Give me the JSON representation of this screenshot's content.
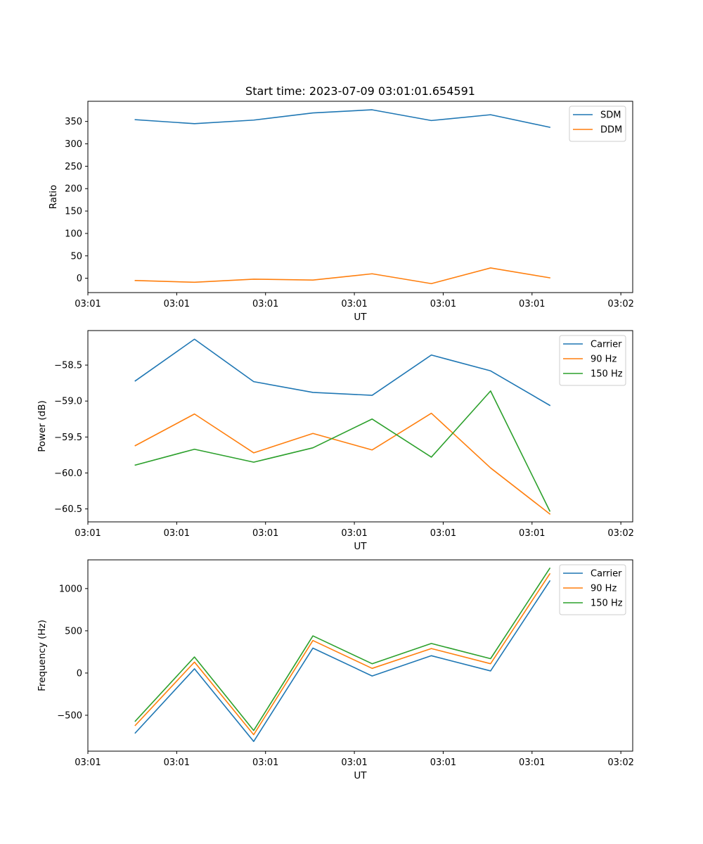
{
  "figure": {
    "title": "Start time: 2023-07-09 03:01:01.654591"
  },
  "chart_data": [
    {
      "type": "line",
      "title": "Start time: 2023-07-09 03:01:01.654591",
      "xlabel": "UT",
      "ylabel": "Ratio",
      "x": [
        1,
        2,
        3,
        4,
        5,
        6,
        7,
        8
      ],
      "xlim": [
        0.2,
        9.4
      ],
      "x_ticks": [
        0.2,
        1.7,
        3.2,
        4.7,
        6.2,
        7.7,
        9.2
      ],
      "x_tick_labels": [
        "03:01",
        "03:01",
        "03:01",
        "03:01",
        "03:01",
        "03:01",
        "03:02"
      ],
      "ylim": [
        -32,
        395
      ],
      "y_ticks": [
        0,
        50,
        100,
        150,
        200,
        250,
        300,
        350
      ],
      "y_tick_labels": [
        "0",
        "50",
        "100",
        "150",
        "200",
        "250",
        "300",
        "350"
      ],
      "legend_position": "top-right",
      "series": [
        {
          "name": "SDM",
          "color": "#1f77b4",
          "values": [
            354,
            345,
            353,
            369,
            376,
            352,
            365,
            337
          ]
        },
        {
          "name": "DDM",
          "color": "#ff7f0e",
          "values": [
            -5,
            -9,
            -2,
            -4,
            10,
            -12,
            23,
            1
          ]
        }
      ]
    },
    {
      "type": "line",
      "title": "",
      "xlabel": "UT",
      "ylabel": "Power (dB)",
      "x": [
        1,
        2,
        3,
        4,
        5,
        6,
        7,
        8
      ],
      "xlim": [
        0.2,
        9.4
      ],
      "x_ticks": [
        0.2,
        1.7,
        3.2,
        4.7,
        6.2,
        7.7,
        9.2
      ],
      "x_tick_labels": [
        "03:01",
        "03:01",
        "03:01",
        "03:01",
        "03:01",
        "03:01",
        "03:02"
      ],
      "ylim": [
        -60.68,
        -58.02
      ],
      "y_ticks": [
        -60.5,
        -60.0,
        -59.5,
        -59.0,
        -58.5
      ],
      "y_tick_labels": [
        "−60.5",
        "−60.0",
        "−59.5",
        "−59.0",
        "−58.5"
      ],
      "legend_position": "top-right",
      "series": [
        {
          "name": "Carrier",
          "color": "#1f77b4",
          "values": [
            -58.72,
            -58.14,
            -58.73,
            -58.88,
            -58.92,
            -58.36,
            -58.58,
            -59.06
          ]
        },
        {
          "name": "90 Hz",
          "color": "#ff7f0e",
          "values": [
            -59.62,
            -59.18,
            -59.72,
            -59.45,
            -59.68,
            -59.17,
            -59.93,
            -60.57
          ]
        },
        {
          "name": "150 Hz",
          "color": "#2ca02c",
          "values": [
            -59.89,
            -59.67,
            -59.85,
            -59.65,
            -59.25,
            -59.78,
            -58.86,
            -60.53
          ]
        }
      ]
    },
    {
      "type": "line",
      "title": "",
      "xlabel": "UT",
      "ylabel": "Frequency (Hz)",
      "x": [
        1,
        2,
        3,
        4,
        5,
        6,
        7,
        8
      ],
      "xlim": [
        0.2,
        9.4
      ],
      "x_ticks": [
        0.2,
        1.7,
        3.2,
        4.7,
        6.2,
        7.7,
        9.2
      ],
      "x_tick_labels": [
        "03:01",
        "03:01",
        "03:01",
        "03:01",
        "03:01",
        "03:01",
        "03:02"
      ],
      "ylim": [
        -925,
        1340
      ],
      "y_ticks": [
        -500,
        0,
        500,
        1000
      ],
      "y_tick_labels": [
        "−500",
        "0",
        "500",
        "1000"
      ],
      "legend_position": "top-right",
      "series": [
        {
          "name": "Carrier",
          "color": "#1f77b4",
          "values": [
            -710,
            50,
            -810,
            295,
            -35,
            205,
            25,
            1090
          ]
        },
        {
          "name": "90 Hz",
          "color": "#ff7f0e",
          "values": [
            -620,
            130,
            -730,
            385,
            55,
            290,
            110,
            1175
          ]
        },
        {
          "name": "150 Hz",
          "color": "#2ca02c",
          "values": [
            -570,
            190,
            -680,
            440,
            110,
            350,
            170,
            1240
          ]
        }
      ]
    }
  ]
}
